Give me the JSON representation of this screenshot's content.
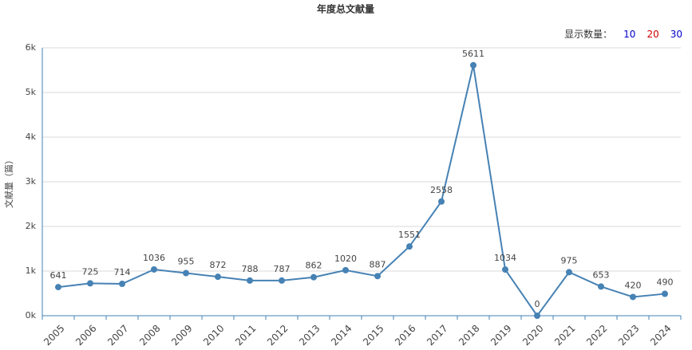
{
  "chart_data": {
    "type": "line",
    "title": "年度总文献量",
    "y_label": "文献量（篇）",
    "categories": [
      "2005",
      "2006",
      "2007",
      "2008",
      "2009",
      "2010",
      "2011",
      "2012",
      "2013",
      "2014",
      "2015",
      "2016",
      "2017",
      "2018",
      "2019",
      "2020",
      "2021",
      "2022",
      "2023",
      "2024"
    ],
    "values": [
      641,
      725,
      714,
      1036,
      955,
      872,
      788,
      787,
      862,
      1020,
      887,
      1551,
      2558,
      5611,
      1034,
      0,
      975,
      653,
      420,
      490
    ],
    "color": "#4682b4",
    "ylim": [
      0,
      6000
    ],
    "yticks": [
      {
        "value": 0,
        "label": "0k"
      },
      {
        "value": 1000,
        "label": "1k"
      },
      {
        "value": 2000,
        "label": "2k"
      },
      {
        "value": 3000,
        "label": "3k"
      },
      {
        "value": 4000,
        "label": "4k"
      },
      {
        "value": 5000,
        "label": "5k"
      },
      {
        "value": 6000,
        "label": "6k"
      }
    ],
    "grid": true
  },
  "controls": {
    "label": "显示数量：",
    "options": [
      10,
      20,
      30
    ],
    "option_colors": [
      "#0000cc",
      "#cc0000",
      "#0000cc"
    ]
  }
}
